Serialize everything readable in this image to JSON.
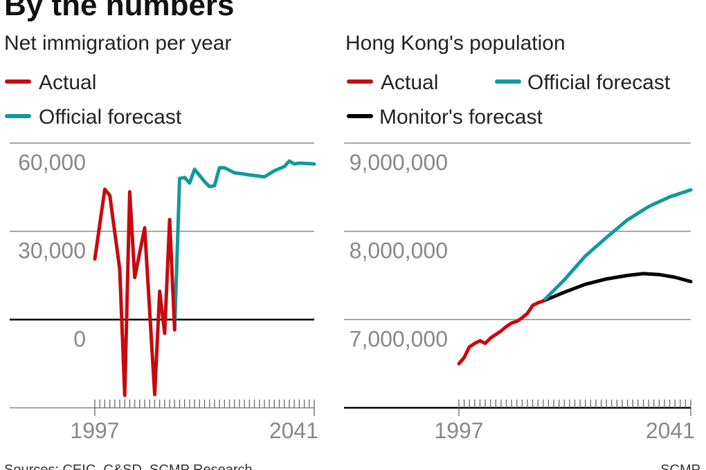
{
  "title": "By the numbers",
  "footer": {
    "sources": "Sources: CEIC, C&SD, SCMP Research",
    "credit": "SCMP"
  },
  "colors": {
    "actual": "#c8090d",
    "official": "#12999a",
    "monitor": "#000000",
    "grid": "#888888",
    "tick_text": "#888888"
  },
  "chart_data": [
    {
      "type": "line",
      "title": "Net immigration per year",
      "xlim": [
        1997,
        2041
      ],
      "ylim": [
        -30000,
        60000
      ],
      "yticks": [
        {
          "v": 60000,
          "label": "60,000"
        },
        {
          "v": 30000,
          "label": "30,000"
        },
        {
          "v": 0,
          "label": "0"
        }
      ],
      "xticks": [
        {
          "v": 1997,
          "label": "1997"
        },
        {
          "v": 2041,
          "label": "2041"
        }
      ],
      "grid": true,
      "legend": [
        {
          "name": "Actual",
          "color": "#c8090d"
        },
        {
          "name": "Official forecast",
          "color": "#12999a"
        }
      ],
      "series": [
        {
          "name": "Actual",
          "color": "#c8090d",
          "x": [
            1997,
            1999,
            2000,
            2002,
            2003,
            2004,
            2005,
            2007,
            2009,
            2010,
            2011,
            2012,
            2013
          ],
          "y": [
            20600,
            44300,
            42200,
            17100,
            -25800,
            43400,
            14300,
            31200,
            -25500,
            9600,
            -4700,
            34000,
            -3500
          ]
        },
        {
          "name": "Official forecast",
          "color": "#12999a",
          "x": [
            2013,
            2014,
            2015,
            2016,
            2017,
            2019,
            2020,
            2021,
            2022,
            2023,
            2025,
            2028,
            2031,
            2033,
            2035,
            2036,
            2037,
            2038,
            2041
          ],
          "y": [
            -3500,
            48000,
            48300,
            46400,
            51100,
            46900,
            45200,
            45500,
            51600,
            51600,
            49900,
            49200,
            48500,
            50600,
            52000,
            53900,
            52900,
            53200,
            52900
          ]
        }
      ]
    },
    {
      "type": "line",
      "title": "Hong Kong's population",
      "xlim": [
        1997,
        2041
      ],
      "ylim": [
        6000000,
        9000000
      ],
      "yticks": [
        {
          "v": 9000000,
          "label": "9,000,000"
        },
        {
          "v": 8000000,
          "label": "8,000,000"
        },
        {
          "v": 7000000,
          "label": "7,000,000"
        }
      ],
      "xticks": [
        {
          "v": 1997,
          "label": "1997"
        },
        {
          "v": 2041,
          "label": "2041"
        }
      ],
      "grid": true,
      "legend": [
        {
          "name": "Actual",
          "color": "#c8090d"
        },
        {
          "name": "Official forecast",
          "color": "#12999a"
        },
        {
          "name": "Monitor's forecast",
          "color": "#000000"
        }
      ],
      "series": [
        {
          "name": "Actual",
          "color": "#c8090d",
          "x": [
            1997,
            1998,
            1999,
            2000,
            2001,
            2002,
            2003,
            2004,
            2005,
            2006,
            2007,
            2008,
            2009,
            2010,
            2011,
            2012,
            2013
          ],
          "y": [
            6500000,
            6570000,
            6690000,
            6730000,
            6760000,
            6730000,
            6790000,
            6830000,
            6870000,
            6920000,
            6960000,
            6980000,
            7020000,
            7070000,
            7160000,
            7190000,
            7210000
          ]
        },
        {
          "name": "Official forecast",
          "color": "#12999a",
          "x": [
            2013,
            2017,
            2021,
            2025,
            2029,
            2033,
            2037,
            2041
          ],
          "y": [
            7210000,
            7450000,
            7720000,
            7930000,
            8130000,
            8280000,
            8390000,
            8470000
          ]
        },
        {
          "name": "Monitor's forecast",
          "color": "#000000",
          "x": [
            2013,
            2017,
            2021,
            2025,
            2029,
            2032,
            2035,
            2038,
            2041
          ],
          "y": [
            7210000,
            7310000,
            7400000,
            7460000,
            7500000,
            7520000,
            7510000,
            7480000,
            7430000
          ]
        }
      ]
    }
  ]
}
